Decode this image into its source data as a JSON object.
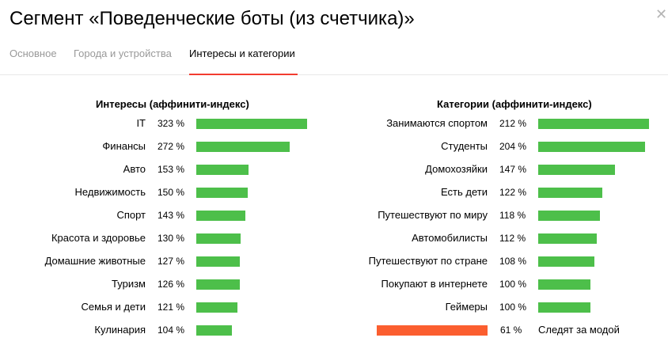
{
  "header": {
    "title": "Сегмент «Поведенческие боты (из счетчика)»",
    "close_icon": "close-icon"
  },
  "tabs": [
    {
      "label": "Основное",
      "active": false
    },
    {
      "label": "Города и устройства",
      "active": false
    },
    {
      "label": "Интересы и категории",
      "active": true
    }
  ],
  "interests": {
    "title": "Интересы (аффинити-индекс)",
    "bar_color": "#4dbf4a",
    "items": [
      {
        "label": "IT",
        "value": 323,
        "display": "323 %"
      },
      {
        "label": "Финансы",
        "value": 272,
        "display": "272 %"
      },
      {
        "label": "Авто",
        "value": 153,
        "display": "153 %"
      },
      {
        "label": "Недвижимость",
        "value": 150,
        "display": "150 %"
      },
      {
        "label": "Спорт",
        "value": 143,
        "display": "143 %"
      },
      {
        "label": "Красота и здоровье",
        "value": 130,
        "display": "130 %"
      },
      {
        "label": "Домашние животные",
        "value": 127,
        "display": "127 %"
      },
      {
        "label": "Туризм",
        "value": 126,
        "display": "126 %"
      },
      {
        "label": "Семья и дети",
        "value": 121,
        "display": "121 %"
      },
      {
        "label": "Кулинария",
        "value": 104,
        "display": "104 %"
      }
    ]
  },
  "categories": {
    "title": "Категории (аффинити-индекс)",
    "bar_color": "#4dbf4a",
    "negative_color": "#fb5e2f",
    "items": [
      {
        "label": "Занимаются спортом",
        "value": 212,
        "display": "212 %"
      },
      {
        "label": "Студенты",
        "value": 204,
        "display": "204 %"
      },
      {
        "label": "Домохозяйки",
        "value": 147,
        "display": "147 %"
      },
      {
        "label": "Есть дети",
        "value": 122,
        "display": "122 %"
      },
      {
        "label": "Путешествуют по миру",
        "value": 118,
        "display": "118 %"
      },
      {
        "label": "Автомобилисты",
        "value": 112,
        "display": "112 %"
      },
      {
        "label": "Путешествуют по стране",
        "value": 108,
        "display": "108 %"
      },
      {
        "label": "Покупают в интернете",
        "value": 100,
        "display": "100 %"
      },
      {
        "label": "Геймеры",
        "value": 100,
        "display": "100 %"
      },
      {
        "label": "Следят за модой",
        "value": 61,
        "display": "61 %"
      }
    ]
  }
}
